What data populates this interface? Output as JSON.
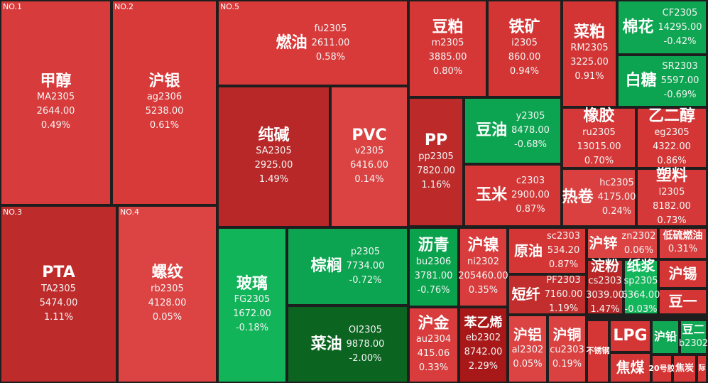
{
  "tiles": [
    {
      "label": "NO.1",
      "name": "甲醇",
      "code": "MA2305",
      "price": "2644.00",
      "change": "0.49%",
      "color": "#d83b3b"
    },
    {
      "label": "NO.2",
      "name": "沪银",
      "code": "ag2306",
      "price": "5238.00",
      "change": "0.61%",
      "color": "#d83a3a"
    },
    {
      "label": "NO.5",
      "name": "燃油",
      "code": "fu2305",
      "price": "2611.00",
      "change": "0.58%",
      "color": "#d83a3a"
    },
    {
      "name": "豆粕",
      "code": "m2305",
      "price": "3885.00",
      "change": "0.80%",
      "color": "#d53737"
    },
    {
      "name": "铁矿",
      "code": "i2305",
      "price": "860.00",
      "change": "0.94%",
      "color": "#d33535"
    },
    {
      "name": "菜粕",
      "code": "RM2305",
      "price": "3225.00",
      "change": "0.91%",
      "color": "#d33535"
    },
    {
      "name": "棉花",
      "code": "CF2305",
      "price": "14295.00",
      "change": "-0.42%",
      "color": "#0ea652"
    },
    {
      "name": "白糖",
      "code": "SR2303",
      "price": "5597.00",
      "change": "-0.69%",
      "color": "#0ca450"
    },
    {
      "name": "纯碱",
      "code": "SA2305",
      "price": "2925.00",
      "change": "1.49%",
      "color": "#b82828"
    },
    {
      "name": "PVC",
      "code": "v2305",
      "price": "6416.00",
      "change": "0.14%",
      "color": "#db4242"
    },
    {
      "name": "PP",
      "code": "pp2305",
      "price": "7820.00",
      "change": "1.16%",
      "color": "#bc2a2a"
    },
    {
      "name": "豆油",
      "code": "y2305",
      "price": "8478.00",
      "change": "-0.68%",
      "color": "#0ca450"
    },
    {
      "name": "玉米",
      "code": "c2303",
      "price": "2900.00",
      "change": "0.87%",
      "color": "#d43636"
    },
    {
      "name": "橡胶",
      "code": "ru2305",
      "price": "13015.00",
      "change": "0.70%",
      "color": "#d53838"
    },
    {
      "name": "乙二醇",
      "code": "eg2305",
      "price": "4322.00",
      "change": "0.86%",
      "color": "#d43636"
    },
    {
      "name": "热卷",
      "code": "hc2305",
      "price": "4175.00",
      "change": "0.24%",
      "color": "#da4040"
    },
    {
      "name": "塑料",
      "code": "l2305",
      "price": "8182.00",
      "change": "0.73%",
      "color": "#d53838"
    },
    {
      "label": "NO.3",
      "name": "PTA",
      "code": "TA2305",
      "price": "5474.00",
      "change": "1.11%",
      "color": "#be2b2b"
    },
    {
      "label": "NO.4",
      "name": "螺纹",
      "code": "rb2305",
      "price": "4128.00",
      "change": "0.05%",
      "color": "#dc4343"
    },
    {
      "name": "玻璃",
      "code": "FG2305",
      "price": "1672.00",
      "change": "-0.18%",
      "color": "#12b45a"
    },
    {
      "name": "棕榈",
      "code": "p2305",
      "price": "7734.00",
      "change": "-0.72%",
      "color": "#0ca450"
    },
    {
      "name": "菜油",
      "code": "OI2305",
      "price": "9878.00",
      "change": "-2.00%",
      "color": "#0b6420"
    },
    {
      "name": "沥青",
      "code": "bu2306",
      "price": "3781.00",
      "change": "-0.76%",
      "color": "#0ba24e"
    },
    {
      "name": "沪镍",
      "code": "ni2302",
      "price": "205460.00",
      "change": "0.35%",
      "color": "#d93c3c"
    },
    {
      "name": "原油",
      "code": "sc2303",
      "price": "534.20",
      "change": "0.87%",
      "color": "#d43636"
    },
    {
      "name": "短纤",
      "code": "PF2303",
      "price": "7160.00",
      "change": "1.19%",
      "color": "#c22d2d"
    },
    {
      "name": "沪锌",
      "code": "zn2302",
      "change": "0.06%",
      "color": "#dc4343"
    },
    {
      "name": "低硫燃油",
      "change": "0.31%",
      "color": "#d93c3c"
    },
    {
      "name": "淀粉",
      "code": "cs2303",
      "price": "3039.00",
      "change": "1.47%",
      "color": "#b92828"
    },
    {
      "name": "纸浆",
      "code": "sp2305",
      "price": "6364.00",
      "change": "-0.03%",
      "color": "#14b65c"
    },
    {
      "name": "沪锡",
      "color": "#d43636"
    },
    {
      "name": "豆一",
      "color": "#d43636"
    },
    {
      "name": "沪金",
      "code": "au2304",
      "price": "415.06",
      "change": "0.33%",
      "color": "#d93c3c"
    },
    {
      "name": "苯乙烯",
      "code": "eb2302",
      "price": "8742.00",
      "change": "2.29%",
      "color": "#a81818"
    },
    {
      "name": "沪铝",
      "code": "al2302",
      "change": "0.05%",
      "color": "#dc4343"
    },
    {
      "name": "沪铜",
      "code": "cu2303",
      "change": "0.19%",
      "color": "#da4141"
    },
    {
      "name": "不锈钢",
      "color": "#d43636"
    },
    {
      "name": "LPG",
      "color": "#d43636"
    },
    {
      "name": "焦煤",
      "color": "#d43636"
    },
    {
      "name": "沪铅",
      "color": "#10a854"
    },
    {
      "name": "豆二",
      "code": "b2302",
      "color": "#10a854"
    },
    {
      "name": "20号胶",
      "color": "#d43636"
    },
    {
      "name": "焦炭",
      "color": "#d43636"
    },
    {
      "name": "际",
      "color": "#d43636"
    }
  ]
}
